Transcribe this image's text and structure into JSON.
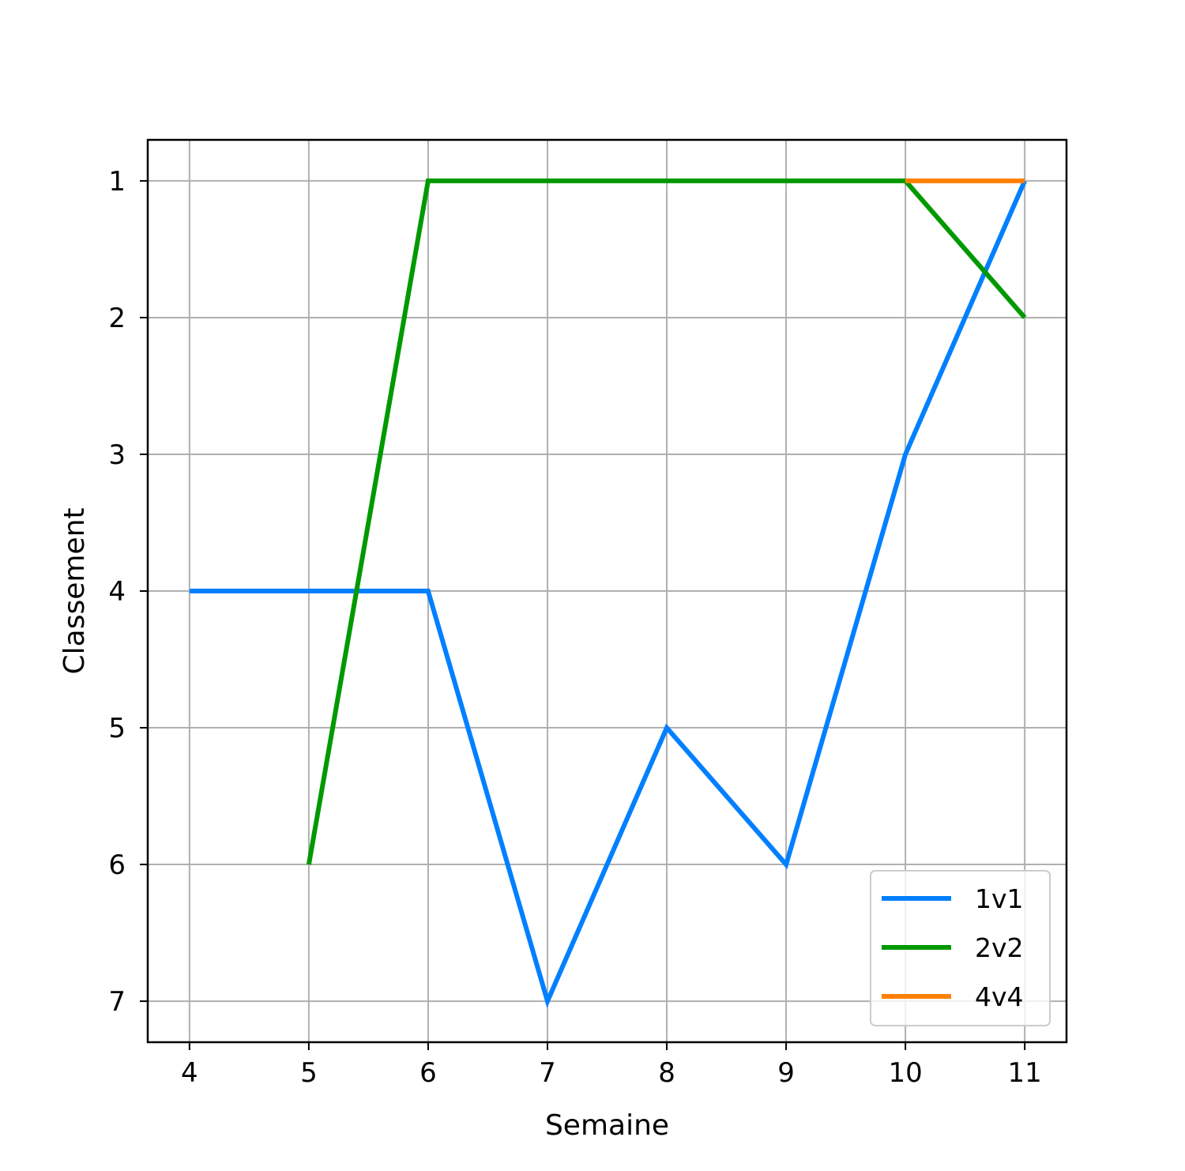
{
  "chart_data": {
    "type": "line",
    "title": "",
    "xlabel": "Semaine",
    "ylabel": "Classement",
    "x_ticks": [
      4,
      5,
      6,
      7,
      8,
      9,
      10,
      11
    ],
    "y_ticks": [
      1,
      2,
      3,
      4,
      5,
      6,
      7
    ],
    "xlim": [
      3.65,
      11.35
    ],
    "ylim": [
      7.3,
      0.7
    ],
    "y_inverted": true,
    "grid": true,
    "legend_position": "bottom-right",
    "series": [
      {
        "name": "1v1",
        "color": "#0080ff",
        "x": [
          4,
          5,
          6,
          7,
          8,
          9,
          10,
          11
        ],
        "y": [
          4,
          4,
          4,
          7,
          5,
          6,
          3,
          1
        ]
      },
      {
        "name": "2v2",
        "color": "#009900",
        "x": [
          5,
          6,
          7,
          8,
          9,
          10,
          11
        ],
        "y": [
          6,
          1,
          1,
          1,
          1,
          1,
          2
        ]
      },
      {
        "name": "4v4",
        "color": "#ff8000",
        "x": [
          10,
          11
        ],
        "y": [
          1,
          1
        ]
      }
    ]
  }
}
